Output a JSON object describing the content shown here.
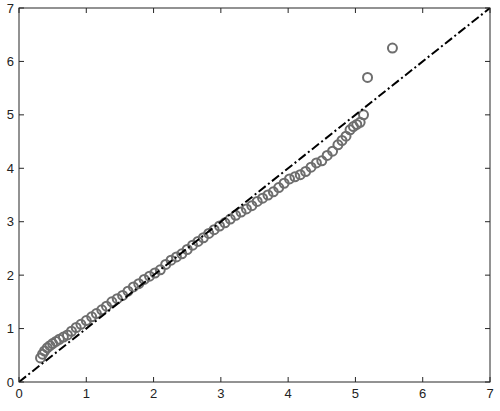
{
  "chart_data": {
    "type": "scatter",
    "xlim": [
      0,
      7
    ],
    "ylim": [
      0,
      7
    ],
    "xticks": [
      0,
      1,
      2,
      3,
      4,
      5,
      6,
      7
    ],
    "yticks": [
      0,
      1,
      2,
      3,
      4,
      5,
      6,
      7
    ],
    "grid": false,
    "series": [
      {
        "type": "scatter",
        "color": "#6e6e6e",
        "marker": "circle",
        "x": [
          0.32,
          0.35,
          0.38,
          0.42,
          0.46,
          0.5,
          0.55,
          0.6,
          0.66,
          0.72,
          0.78,
          0.85,
          0.92,
          1.0,
          1.08,
          1.15,
          1.23,
          1.3,
          1.38,
          1.46,
          1.54,
          1.62,
          1.7,
          1.78,
          1.86,
          1.94,
          2.02,
          2.1,
          2.18,
          2.26,
          2.34,
          2.42,
          2.5,
          2.58,
          2.66,
          2.74,
          2.82,
          2.9,
          2.98,
          3.06,
          3.14,
          3.22,
          3.3,
          3.38,
          3.46,
          3.54,
          3.62,
          3.7,
          3.78,
          3.86,
          3.94,
          4.02,
          4.1,
          4.18,
          4.26,
          4.34,
          4.42,
          4.5,
          4.58,
          4.66,
          4.74,
          4.8,
          4.86,
          4.92,
          4.97,
          5.02,
          5.07,
          5.12,
          5.18,
          5.55
        ],
        "values": [
          0.45,
          0.52,
          0.58,
          0.64,
          0.68,
          0.72,
          0.76,
          0.8,
          0.84,
          0.88,
          0.95,
          1.02,
          1.08,
          1.15,
          1.22,
          1.28,
          1.35,
          1.42,
          1.5,
          1.56,
          1.62,
          1.7,
          1.78,
          1.84,
          1.92,
          1.98,
          2.04,
          2.1,
          2.2,
          2.28,
          2.34,
          2.4,
          2.48,
          2.56,
          2.63,
          2.7,
          2.78,
          2.85,
          2.92,
          2.98,
          3.05,
          3.12,
          3.18,
          3.24,
          3.3,
          3.38,
          3.44,
          3.5,
          3.56,
          3.64,
          3.72,
          3.8,
          3.84,
          3.88,
          3.94,
          4.02,
          4.1,
          4.14,
          4.24,
          4.32,
          4.44,
          4.52,
          4.6,
          4.72,
          4.78,
          4.82,
          4.86,
          5.0,
          5.7,
          6.25
        ]
      },
      {
        "type": "line",
        "color": "#000000",
        "line_style": "dashdot",
        "x": [
          0,
          7
        ],
        "values": [
          0,
          7
        ]
      }
    ]
  }
}
